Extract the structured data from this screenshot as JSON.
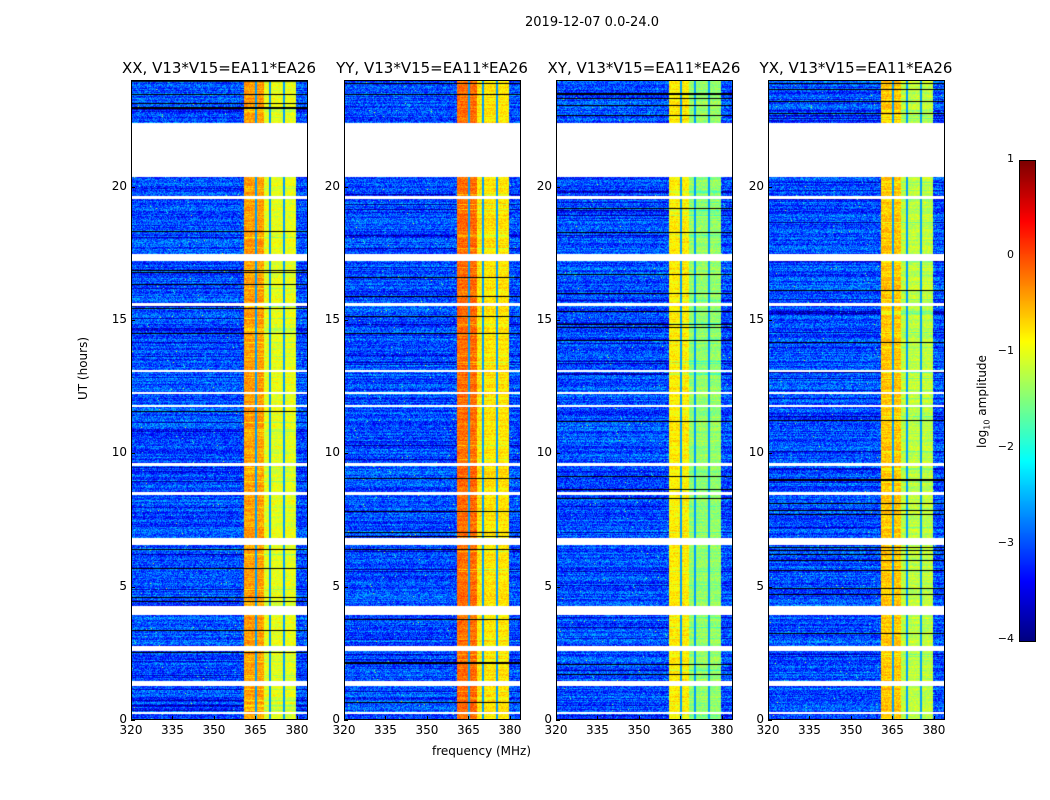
{
  "chart_data": {
    "type": "heatmap",
    "suptitle": "2019-12-07 0.0-24.0",
    "xlabel": "frequency (MHz)",
    "ylabel": "UT (hours)",
    "xlim": [
      320,
      384
    ],
    "ylim": [
      0,
      24
    ],
    "xticks": [
      "320",
      "335",
      "350",
      "365",
      "380"
    ],
    "xtick_values": [
      320,
      335,
      350,
      365,
      380
    ],
    "yticks": [
      "0",
      "5",
      "10",
      "15",
      "20"
    ],
    "ytick_values": [
      0,
      5,
      10,
      15,
      20
    ],
    "panels": [
      {
        "title": "XX, V13*V15=EA11*EA26",
        "band_level": -0.6
      },
      {
        "title": "YY, V13*V15=EA11*EA26",
        "band_level": -0.35
      },
      {
        "title": "XY, V13*V15=EA11*EA26",
        "band_level": -1.0
      },
      {
        "title": "YX, V13*V15=EA11*EA26",
        "band_level": -0.8
      }
    ],
    "background_level": -3.0,
    "band_range_mhz": [
      360.5,
      379.5
    ],
    "band_gaps_mhz": [
      365,
      370,
      375,
      380
    ],
    "flagged_hours": [
      [
        20.4,
        22.4
      ],
      [
        19.55,
        19.65
      ],
      [
        17.25,
        17.5
      ],
      [
        15.55,
        15.65
      ],
      [
        13.05,
        13.15
      ],
      [
        12.25,
        12.32
      ],
      [
        11.75,
        11.82
      ],
      [
        9.55,
        9.65
      ],
      [
        8.45,
        8.55
      ],
      [
        6.6,
        6.85
      ],
      [
        3.95,
        4.3
      ],
      [
        2.6,
        2.8
      ],
      [
        1.3,
        1.48
      ],
      [
        0.25,
        0.32
      ]
    ],
    "colorbar": {
      "label": "log10 amplitude",
      "label_main": "log",
      "label_sub": "10",
      "label_rest": " amplitude",
      "range": [
        -4,
        1
      ],
      "ticks": [
        "1",
        "0",
        "−1",
        "−2",
        "−3",
        "−4"
      ],
      "tick_values": [
        1,
        0,
        -1,
        -2,
        -3,
        -4
      ],
      "colormap": "jet"
    }
  }
}
